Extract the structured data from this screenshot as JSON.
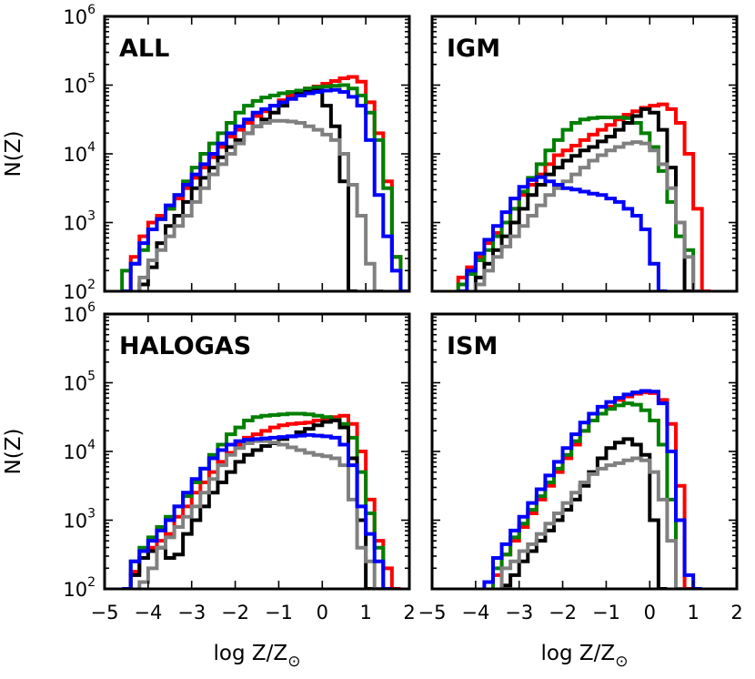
{
  "chart_data": {
    "type": "histogram-grid",
    "xlabel": "log Z/Z",
    "xlabel_subscript_symbol": "⊙",
    "ylabel": "N(Z)",
    "xlim": [
      -5,
      2
    ],
    "ylim_log10": [
      2,
      6
    ],
    "xticks": [
      "−5",
      "−4",
      "−3",
      "−2",
      "−1",
      "0",
      "1",
      "2"
    ],
    "yticks": [
      {
        "base": "10",
        "exp": "2"
      },
      {
        "base": "10",
        "exp": "3"
      },
      {
        "base": "10",
        "exp": "4"
      },
      {
        "base": "10",
        "exp": "5"
      },
      {
        "base": "10",
        "exp": "6"
      }
    ],
    "bin_width": 0.2,
    "colors": {
      "red": "#ff0000",
      "green": "#007f00",
      "black": "#000000",
      "gray": "#808080",
      "blue": "#0000ff"
    },
    "panels": [
      {
        "label": "ALL",
        "series": [
          {
            "name": "red",
            "start": -4.6,
            "log_values": [
              2.0,
              2.5,
              2.8,
              3.0,
              3.1,
              3.2,
              3.35,
              3.5,
              3.65,
              3.8,
              3.95,
              4.1,
              4.25,
              4.35,
              4.45,
              4.55,
              4.62,
              4.7,
              4.78,
              4.85,
              4.9,
              4.95,
              4.98,
              5.02,
              5.06,
              5.1,
              5.12,
              5.05,
              4.75,
              4.3,
              3.6,
              2.5,
              2.0
            ]
          },
          {
            "name": "green",
            "start": -4.6,
            "log_values": [
              2.3,
              2.4,
              2.6,
              2.9,
              3.05,
              3.2,
              3.4,
              3.6,
              3.8,
              4.0,
              4.15,
              4.3,
              4.45,
              4.6,
              4.7,
              4.77,
              4.82,
              4.85,
              4.88,
              4.9,
              4.92,
              4.95,
              4.97,
              4.98,
              4.99,
              5.0,
              4.95,
              4.85,
              4.6,
              4.2,
              3.5,
              2.5,
              2.0
            ]
          },
          {
            "name": "black",
            "start": -4.2,
            "log_values": [
              2.1,
              2.35,
              2.7,
              2.95,
              3.1,
              3.3,
              3.5,
              3.65,
              3.8,
              3.95,
              4.1,
              4.2,
              4.3,
              4.4,
              4.5,
              4.6,
              4.7,
              4.8,
              4.87,
              4.9,
              4.92,
              4.7,
              4.4,
              3.6,
              2.0
            ]
          },
          {
            "name": "gray",
            "start": -4.2,
            "log_values": [
              2.2,
              2.45,
              2.6,
              2.8,
              2.95,
              3.1,
              3.3,
              3.5,
              3.7,
              3.85,
              4.0,
              4.15,
              4.3,
              4.4,
              4.45,
              4.48,
              4.48,
              4.47,
              4.45,
              4.4,
              4.35,
              4.28,
              4.2,
              4.0,
              3.55,
              3.1,
              2.4,
              2.0
            ]
          },
          {
            "name": "blue",
            "start": -4.6,
            "log_values": [
              2.0,
              2.4,
              2.7,
              2.9,
              3.05,
              3.25,
              3.4,
              3.55,
              3.7,
              3.85,
              4.0,
              4.15,
              4.3,
              4.4,
              4.5,
              4.6,
              4.65,
              4.7,
              4.75,
              4.8,
              4.85,
              4.88,
              4.9,
              4.92,
              4.93,
              4.9,
              4.83,
              4.7,
              4.2,
              3.4,
              2.8,
              2.3,
              2.0
            ]
          }
        ]
      },
      {
        "label": "IGM",
        "series": [
          {
            "name": "red",
            "start": -4.4,
            "log_values": [
              2.2,
              2.35,
              2.5,
              2.7,
              2.85,
              3.0,
              3.2,
              3.4,
              3.55,
              3.7,
              3.85,
              3.98,
              4.05,
              4.12,
              4.2,
              4.28,
              4.35,
              4.42,
              4.5,
              4.57,
              4.62,
              4.67,
              4.7,
              4.72,
              4.65,
              4.45,
              4.0,
              3.2,
              2.0
            ]
          },
          {
            "name": "green",
            "start": -4.4,
            "log_values": [
              2.1,
              2.25,
              2.45,
              2.6,
              2.8,
              3.0,
              3.2,
              3.45,
              3.65,
              3.85,
              4.05,
              4.2,
              4.35,
              4.45,
              4.5,
              4.52,
              4.53,
              4.53,
              4.53,
              4.52,
              4.45,
              4.3,
              4.1,
              3.75,
              3.3,
              2.8,
              2.6,
              2.0
            ]
          },
          {
            "name": "black",
            "start": -4.0,
            "log_values": [
              2.2,
              2.4,
              2.6,
              2.8,
              3.0,
              3.2,
              3.4,
              3.55,
              3.7,
              3.8,
              3.9,
              3.97,
              4.05,
              4.1,
              4.18,
              4.25,
              4.35,
              4.45,
              4.55,
              4.65,
              4.6,
              4.35,
              3.8,
              3.0,
              2.0
            ]
          },
          {
            "name": "gray",
            "start": -4.0,
            "log_values": [
              2.1,
              2.3,
              2.5,
              2.65,
              2.8,
              2.95,
              3.1,
              3.25,
              3.4,
              3.5,
              3.6,
              3.7,
              3.8,
              3.9,
              3.98,
              4.05,
              4.1,
              4.15,
              4.17,
              4.15,
              4.05,
              3.85,
              3.5,
              3.0,
              2.5,
              2.0
            ]
          },
          {
            "name": "blue",
            "start": -4.4,
            "log_values": [
              2.0,
              2.3,
              2.55,
              2.75,
              2.95,
              3.15,
              3.35,
              3.52,
              3.62,
              3.66,
              3.6,
              3.55,
              3.5,
              3.48,
              3.45,
              3.42,
              3.4,
              3.35,
              3.3,
              3.2,
              3.1,
              2.9,
              2.4,
              2.0
            ]
          }
        ]
      },
      {
        "label": "HALOGAS",
        "series": [
          {
            "name": "red",
            "start": -4.4,
            "log_values": [
              2.25,
              2.45,
              2.6,
              2.7,
              2.8,
              3.05,
              3.2,
              3.4,
              3.55,
              3.7,
              3.85,
              3.98,
              4.1,
              4.2,
              4.25,
              4.3,
              4.35,
              4.38,
              4.4,
              4.41,
              4.42,
              4.45,
              4.47,
              4.5,
              4.52,
              4.4,
              4.0,
              3.3,
              2.7,
              2.3,
              2.0
            ]
          },
          {
            "name": "green",
            "start": -4.6,
            "log_values": [
              2.0,
              2.4,
              2.6,
              2.75,
              2.9,
              3.05,
              3.2,
              3.35,
              3.55,
              3.75,
              3.95,
              4.1,
              4.25,
              4.35,
              4.45,
              4.5,
              4.52,
              4.53,
              4.54,
              4.55,
              4.55,
              4.54,
              4.52,
              4.5,
              4.46,
              4.4,
              4.2,
              3.7,
              3.1,
              2.6,
              2.0
            ]
          },
          {
            "name": "black",
            "start": -4.4,
            "log_values": [
              2.2,
              2.45,
              2.55,
              2.6,
              2.45,
              2.5,
              2.8,
              3.0,
              3.2,
              3.4,
              3.55,
              3.7,
              3.85,
              3.95,
              4.02,
              4.08,
              4.12,
              4.18,
              4.22,
              4.28,
              4.33,
              4.38,
              4.43,
              4.45,
              4.35,
              3.9,
              3.0,
              2.0
            ]
          },
          {
            "name": "gray",
            "start": -4.2,
            "log_values": [
              2.1,
              2.3,
              2.6,
              2.75,
              2.9,
              3.05,
              3.2,
              3.4,
              3.6,
              3.8,
              3.95,
              4.05,
              4.12,
              4.15,
              4.15,
              4.13,
              4.1,
              4.06,
              4.02,
              3.98,
              3.95,
              3.93,
              3.9,
              3.8,
              3.3,
              2.6,
              2.4,
              2.0
            ]
          },
          {
            "name": "blue",
            "start": -4.6,
            "log_values": [
              2.0,
              2.4,
              2.55,
              2.7,
              2.85,
              3.0,
              3.2,
              3.4,
              3.6,
              3.75,
              3.9,
              4.02,
              4.1,
              4.15,
              4.17,
              4.18,
              4.19,
              4.2,
              4.21,
              4.22,
              4.23,
              4.24,
              4.23,
              4.22,
              4.2,
              4.1,
              3.8,
              3.2,
              2.8,
              2.4,
              2.0
            ]
          }
        ]
      },
      {
        "label": "ISM",
        "series": [
          {
            "name": "red",
            "start": -3.6,
            "log_values": [
              2.2,
              2.5,
              2.7,
              2.9,
              3.1,
              3.3,
              3.5,
              3.7,
              3.9,
              4.1,
              4.3,
              4.45,
              4.55,
              4.65,
              4.75,
              4.8,
              4.84,
              4.86,
              4.85,
              4.75,
              4.4,
              3.5,
              2.0
            ]
          },
          {
            "name": "green",
            "start": -3.6,
            "log_values": [
              2.3,
              2.5,
              2.75,
              2.95,
              3.15,
              3.35,
              3.55,
              3.75,
              3.95,
              4.15,
              4.3,
              4.45,
              4.55,
              4.62,
              4.67,
              4.7,
              4.68,
              4.6,
              4.45,
              4.1,
              3.3,
              2.0
            ]
          },
          {
            "name": "black",
            "start": -3.4,
            "log_values": [
              2.05,
              2.2,
              2.4,
              2.55,
              2.7,
              2.85,
              3.0,
              3.15,
              3.3,
              3.5,
              3.7,
              3.9,
              4.05,
              4.13,
              4.18,
              4.1,
              3.95,
              3.0,
              2.0
            ]
          },
          {
            "name": "gray",
            "start": -3.4,
            "log_values": [
              2.3,
              2.4,
              2.55,
              2.65,
              2.8,
              2.95,
              3.1,
              3.25,
              3.4,
              3.55,
              3.67,
              3.75,
              3.8,
              3.83,
              3.87,
              3.9,
              3.87,
              3.7,
              3.3,
              2.7,
              2.0
            ]
          },
          {
            "name": "blue",
            "start": -3.8,
            "log_values": [
              2.1,
              2.45,
              2.65,
              2.85,
              3.05,
              3.25,
              3.45,
              3.65,
              3.85,
              4.05,
              4.25,
              4.42,
              4.55,
              4.65,
              4.72,
              4.78,
              4.83,
              4.86,
              4.88,
              4.87,
              4.7,
              4.0,
              3.0,
              2.2,
              2.0
            ]
          }
        ]
      }
    ]
  }
}
